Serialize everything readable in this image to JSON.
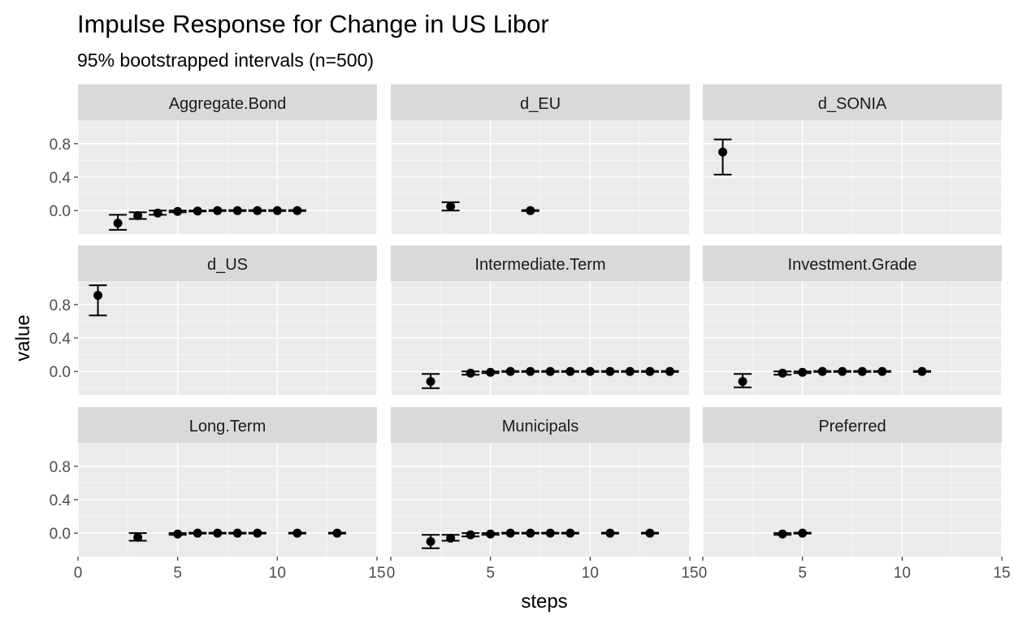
{
  "chart_data": {
    "type": "scatter",
    "title": "Impulse Response for Change in US Libor",
    "subtitle": "95% bootstrapped intervals (n=500)",
    "xlabel": "steps",
    "ylabel": "value",
    "xlim": [
      0,
      15
    ],
    "ylim": [
      -0.28,
      1.08
    ],
    "x_ticks": [
      "0",
      "5",
      "10",
      "15"
    ],
    "y_ticks": [
      "0.0",
      "0.4",
      "0.8"
    ],
    "grid": true,
    "error_bars": true,
    "panels": [
      {
        "name": "Aggregate.Bond",
        "points": [
          {
            "x": 2,
            "y": -0.15,
            "lo": -0.23,
            "hi": -0.05
          },
          {
            "x": 3,
            "y": -0.06,
            "lo": -0.1,
            "hi": -0.02
          },
          {
            "x": 4,
            "y": -0.03,
            "lo": -0.05,
            "hi": 0.0
          },
          {
            "x": 5,
            "y": -0.01,
            "lo": -0.02,
            "hi": 0.0
          },
          {
            "x": 6,
            "y": -0.005,
            "lo": -0.01,
            "hi": 0.0
          },
          {
            "x": 7,
            "y": 0.0,
            "lo": -0.005,
            "hi": 0.005
          },
          {
            "x": 8,
            "y": 0.0,
            "lo": -0.005,
            "hi": 0.005
          },
          {
            "x": 9,
            "y": 0.0,
            "lo": -0.005,
            "hi": 0.005
          },
          {
            "x": 10,
            "y": 0.0,
            "lo": -0.005,
            "hi": 0.005
          },
          {
            "x": 11,
            "y": 0.0,
            "lo": -0.005,
            "hi": 0.005
          }
        ]
      },
      {
        "name": "d_EU",
        "points": [
          {
            "x": 3,
            "y": 0.05,
            "lo": 0.0,
            "hi": 0.1
          },
          {
            "x": 7,
            "y": 0.0,
            "lo": -0.005,
            "hi": 0.005
          }
        ]
      },
      {
        "name": "d_SONIA",
        "points": [
          {
            "x": 1,
            "y": 0.7,
            "lo": 0.43,
            "hi": 0.85
          }
        ]
      },
      {
        "name": "d_US",
        "points": [
          {
            "x": 1,
            "y": 0.91,
            "lo": 0.67,
            "hi": 1.03
          }
        ]
      },
      {
        "name": "Intermediate.Term",
        "points": [
          {
            "x": 2,
            "y": -0.12,
            "lo": -0.2,
            "hi": -0.03
          },
          {
            "x": 4,
            "y": -0.02,
            "lo": -0.04,
            "hi": 0.0
          },
          {
            "x": 5,
            "y": -0.01,
            "lo": -0.02,
            "hi": 0.0
          },
          {
            "x": 6,
            "y": 0.0,
            "lo": -0.005,
            "hi": 0.005
          },
          {
            "x": 7,
            "y": 0.0,
            "lo": -0.005,
            "hi": 0.005
          },
          {
            "x": 8,
            "y": 0.0,
            "lo": -0.005,
            "hi": 0.005
          },
          {
            "x": 9,
            "y": 0.0,
            "lo": -0.005,
            "hi": 0.005
          },
          {
            "x": 10,
            "y": 0.0,
            "lo": -0.005,
            "hi": 0.005
          },
          {
            "x": 11,
            "y": 0.0,
            "lo": -0.005,
            "hi": 0.005
          },
          {
            "x": 12,
            "y": 0.0,
            "lo": -0.005,
            "hi": 0.005
          },
          {
            "x": 13,
            "y": 0.0,
            "lo": -0.005,
            "hi": 0.005
          },
          {
            "x": 14,
            "y": 0.0,
            "lo": -0.005,
            "hi": 0.005
          }
        ]
      },
      {
        "name": "Investment.Grade",
        "points": [
          {
            "x": 2,
            "y": -0.12,
            "lo": -0.19,
            "hi": -0.03
          },
          {
            "x": 4,
            "y": -0.02,
            "lo": -0.04,
            "hi": 0.0
          },
          {
            "x": 5,
            "y": -0.01,
            "lo": -0.02,
            "hi": 0.0
          },
          {
            "x": 6,
            "y": 0.0,
            "lo": -0.005,
            "hi": 0.005
          },
          {
            "x": 7,
            "y": 0.0,
            "lo": -0.005,
            "hi": 0.005
          },
          {
            "x": 8,
            "y": 0.0,
            "lo": -0.005,
            "hi": 0.005
          },
          {
            "x": 9,
            "y": 0.0,
            "lo": -0.005,
            "hi": 0.005
          },
          {
            "x": 11,
            "y": 0.0,
            "lo": -0.005,
            "hi": 0.005
          }
        ]
      },
      {
        "name": "Long.Term",
        "points": [
          {
            "x": 3,
            "y": -0.05,
            "lo": -0.09,
            "hi": 0.0
          },
          {
            "x": 5,
            "y": -0.01,
            "lo": -0.02,
            "hi": 0.0
          },
          {
            "x": 6,
            "y": 0.0,
            "lo": -0.005,
            "hi": 0.005
          },
          {
            "x": 7,
            "y": 0.0,
            "lo": -0.005,
            "hi": 0.005
          },
          {
            "x": 8,
            "y": 0.0,
            "lo": -0.005,
            "hi": 0.005
          },
          {
            "x": 9,
            "y": 0.0,
            "lo": -0.005,
            "hi": 0.005
          },
          {
            "x": 11,
            "y": 0.0,
            "lo": -0.005,
            "hi": 0.005
          },
          {
            "x": 13,
            "y": 0.0,
            "lo": -0.005,
            "hi": 0.005
          }
        ]
      },
      {
        "name": "Municipals",
        "points": [
          {
            "x": 2,
            "y": -0.1,
            "lo": -0.18,
            "hi": -0.02
          },
          {
            "x": 3,
            "y": -0.06,
            "lo": -0.09,
            "hi": -0.02
          },
          {
            "x": 4,
            "y": -0.02,
            "lo": -0.04,
            "hi": 0.0
          },
          {
            "x": 5,
            "y": -0.01,
            "lo": -0.02,
            "hi": 0.0
          },
          {
            "x": 6,
            "y": 0.0,
            "lo": -0.005,
            "hi": 0.005
          },
          {
            "x": 7,
            "y": 0.0,
            "lo": -0.005,
            "hi": 0.005
          },
          {
            "x": 8,
            "y": 0.0,
            "lo": -0.005,
            "hi": 0.005
          },
          {
            "x": 9,
            "y": 0.0,
            "lo": -0.005,
            "hi": 0.005
          },
          {
            "x": 11,
            "y": 0.0,
            "lo": -0.005,
            "hi": 0.005
          },
          {
            "x": 13,
            "y": 0.0,
            "lo": -0.005,
            "hi": 0.005
          }
        ]
      },
      {
        "name": "Preferred",
        "points": [
          {
            "x": 4,
            "y": -0.01,
            "lo": -0.02,
            "hi": 0.0
          },
          {
            "x": 5,
            "y": 0.0,
            "lo": -0.005,
            "hi": 0.005
          }
        ]
      }
    ],
    "colors": {
      "panel_background": "#ebebeb",
      "strip_background": "#d9d9d9",
      "grid_major": "#ffffff",
      "point": "#000000",
      "tick_label": "#4d4d4d"
    }
  }
}
